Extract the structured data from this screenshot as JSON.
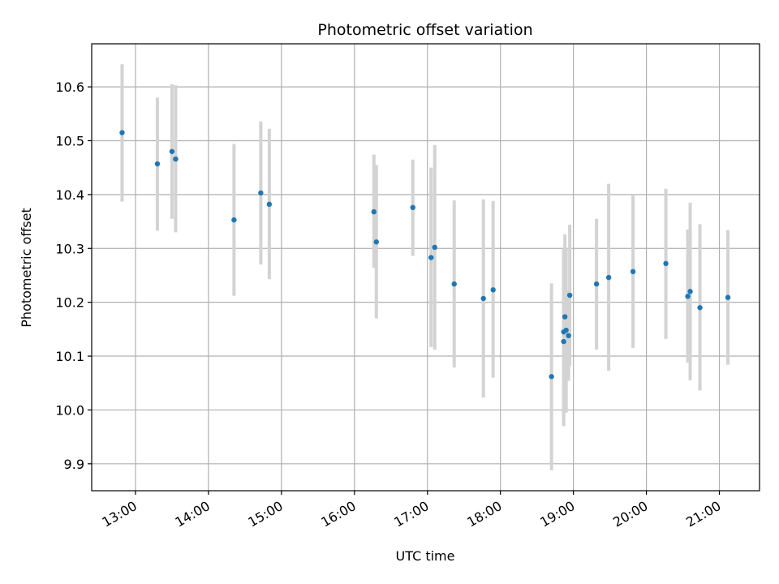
{
  "chart_data": {
    "type": "scatter",
    "title": "Photometric offset variation",
    "xlabel": "UTC time",
    "ylabel": "Photometric offset",
    "x_unit": "UTC time of day",
    "xlim": [
      "12:24",
      "21:33"
    ],
    "ylim": [
      9.85,
      10.68
    ],
    "x_ticks": [
      "13:00",
      "14:00",
      "15:00",
      "16:00",
      "17:00",
      "18:00",
      "19:00",
      "20:00",
      "21:00"
    ],
    "y_ticks": [
      "9.9",
      "10.0",
      "10.1",
      "10.2",
      "10.3",
      "10.4",
      "10.5",
      "10.6"
    ],
    "grid": true,
    "colors": {
      "point": "#1f77b4",
      "errorbar": "#d3d3d3",
      "grid": "#b0b0b0"
    },
    "points": [
      {
        "t": "12:49",
        "y": 10.515,
        "lo": 10.387,
        "hi": 10.642
      },
      {
        "t": "13:18",
        "y": 10.457,
        "lo": 10.333,
        "hi": 10.58
      },
      {
        "t": "13:30",
        "y": 10.48,
        "lo": 10.355,
        "hi": 10.605
      },
      {
        "t": "13:33",
        "y": 10.466,
        "lo": 10.33,
        "hi": 10.603
      },
      {
        "t": "14:21",
        "y": 10.353,
        "lo": 10.212,
        "hi": 10.494
      },
      {
        "t": "14:43",
        "y": 10.403,
        "lo": 10.27,
        "hi": 10.536
      },
      {
        "t": "14:50",
        "y": 10.382,
        "lo": 10.243,
        "hi": 10.522
      },
      {
        "t": "16:16",
        "y": 10.368,
        "lo": 10.264,
        "hi": 10.474
      },
      {
        "t": "16:18",
        "y": 10.312,
        "lo": 10.17,
        "hi": 10.455
      },
      {
        "t": "16:48",
        "y": 10.376,
        "lo": 10.286,
        "hi": 10.465
      },
      {
        "t": "17:03",
        "y": 10.283,
        "lo": 10.117,
        "hi": 10.45
      },
      {
        "t": "17:06",
        "y": 10.302,
        "lo": 10.112,
        "hi": 10.492
      },
      {
        "t": "17:22",
        "y": 10.234,
        "lo": 10.079,
        "hi": 10.389
      },
      {
        "t": "17:46",
        "y": 10.207,
        "lo": 10.023,
        "hi": 10.391
      },
      {
        "t": "17:54",
        "y": 10.223,
        "lo": 10.06,
        "hi": 10.388
      },
      {
        "t": "18:42",
        "y": 10.062,
        "lo": 9.888,
        "hi": 10.235
      },
      {
        "t": "18:52",
        "y": 10.127,
        "lo": 9.97,
        "hi": 10.285
      },
      {
        "t": "18:52",
        "y": 10.145,
        "lo": 9.985,
        "hi": 10.3
      },
      {
        "t": "18:53",
        "y": 10.173,
        "lo": 10.02,
        "hi": 10.326
      },
      {
        "t": "18:54",
        "y": 10.148,
        "lo": 9.995,
        "hi": 10.3
      },
      {
        "t": "18:56",
        "y": 10.138,
        "lo": 10.054,
        "hi": 10.222
      },
      {
        "t": "18:57",
        "y": 10.213,
        "lo": 10.082,
        "hi": 10.344
      },
      {
        "t": "19:19",
        "y": 10.234,
        "lo": 10.112,
        "hi": 10.355
      },
      {
        "t": "19:29",
        "y": 10.246,
        "lo": 10.073,
        "hi": 10.42
      },
      {
        "t": "19:49",
        "y": 10.257,
        "lo": 10.115,
        "hi": 10.4
      },
      {
        "t": "20:16",
        "y": 10.272,
        "lo": 10.132,
        "hi": 10.411
      },
      {
        "t": "20:34",
        "y": 10.211,
        "lo": 10.088,
        "hi": 10.335
      },
      {
        "t": "20:36",
        "y": 10.22,
        "lo": 10.055,
        "hi": 10.385
      },
      {
        "t": "20:44",
        "y": 10.19,
        "lo": 10.036,
        "hi": 10.345
      },
      {
        "t": "21:07",
        "y": 10.209,
        "lo": 10.084,
        "hi": 10.334
      }
    ]
  }
}
